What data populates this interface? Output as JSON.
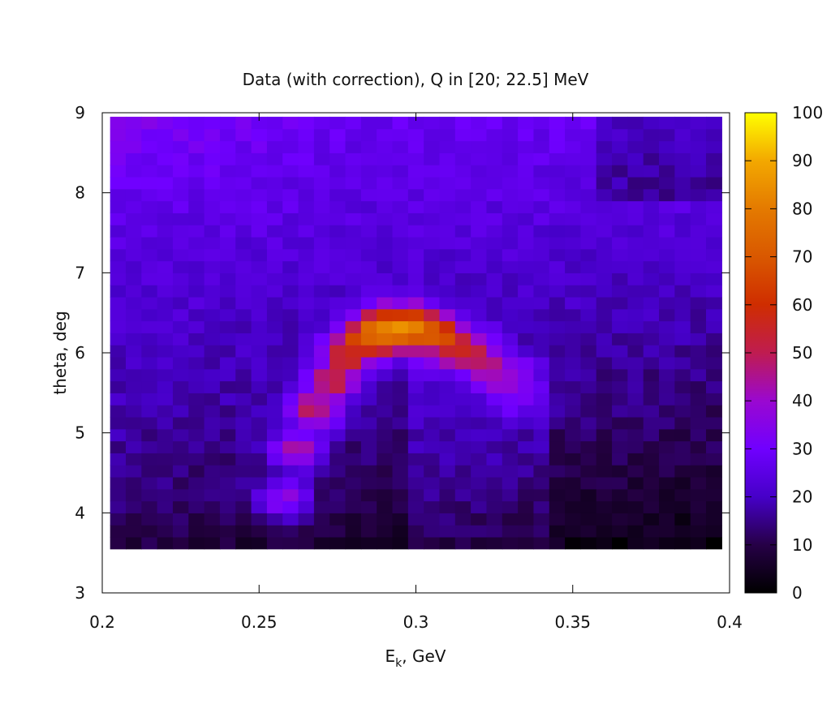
{
  "chart_data": {
    "type": "heatmap",
    "title": "Data (with correction), Q in [20; 22.5] MeV",
    "xlabel": {
      "base": "E",
      "sub": "k",
      "rest": ", GeV"
    },
    "ylabel": "theta, deg",
    "xlim": [
      0.2,
      0.4
    ],
    "ylim": [
      3,
      9
    ],
    "x_ticks": [
      "0.2",
      "0.25",
      "0.3",
      "0.35",
      "0.4"
    ],
    "y_ticks": [
      "3",
      "4",
      "5",
      "6",
      "7",
      "8",
      "9"
    ],
    "colorbar": {
      "range": [
        0,
        100
      ],
      "ticks": [
        "0",
        "10",
        "20",
        "30",
        "40",
        "50",
        "60",
        "70",
        "80",
        "90",
        "100"
      ],
      "palette": "black-blue-purple-red-orange-yellow"
    },
    "data_extent": {
      "x": [
        0.2025,
        0.3975
      ],
      "y": [
        3.55,
        8.95
      ]
    },
    "bins": {
      "nx": 39,
      "ny": 36
    },
    "features": {
      "background": {
        "low_theta": 8,
        "high_theta": 28,
        "low_energy_level": 26,
        "high_energy_level": 10
      },
      "arc": {
        "description": "arc-shaped band of high intensity",
        "ridge": [
          {
            "x": 0.258,
            "theta": 4.2,
            "value": 38
          },
          {
            "x": 0.262,
            "theta": 4.8,
            "value": 44
          },
          {
            "x": 0.268,
            "theta": 5.3,
            "value": 50
          },
          {
            "x": 0.273,
            "theta": 5.65,
            "value": 55
          },
          {
            "x": 0.278,
            "theta": 5.95,
            "value": 62
          },
          {
            "x": 0.283,
            "theta": 6.15,
            "value": 72
          },
          {
            "x": 0.288,
            "theta": 6.25,
            "value": 85
          },
          {
            "x": 0.293,
            "theta": 6.3,
            "value": 90
          },
          {
            "x": 0.298,
            "theta": 6.3,
            "value": 88
          },
          {
            "x": 0.303,
            "theta": 6.25,
            "value": 78
          },
          {
            "x": 0.308,
            "theta": 6.2,
            "value": 68
          },
          {
            "x": 0.313,
            "theta": 6.1,
            "value": 60
          },
          {
            "x": 0.318,
            "theta": 6.0,
            "value": 54
          },
          {
            "x": 0.323,
            "theta": 5.85,
            "value": 48
          },
          {
            "x": 0.328,
            "theta": 5.7,
            "value": 42
          },
          {
            "x": 0.333,
            "theta": 5.5,
            "value": 36
          }
        ]
      }
    }
  }
}
